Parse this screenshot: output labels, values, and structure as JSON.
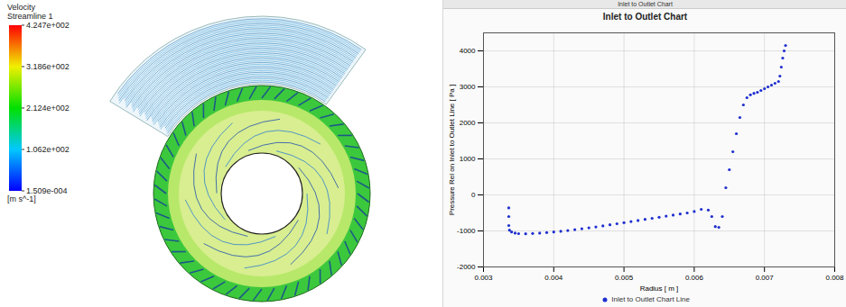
{
  "chart_data": [
    {
      "type": "image",
      "title": "Velocity",
      "subtitle": "Streamline 1",
      "colorbar": {
        "range": [
          0.0001509,
          424.7
        ],
        "ticks": [
          {
            "value": 424.7,
            "label": "4.247e+002"
          },
          {
            "value": 318.6,
            "label": "3.186e+002"
          },
          {
            "value": 212.4,
            "label": "2.124e+002"
          },
          {
            "value": 106.2,
            "label": "1.062e+002"
          },
          {
            "value": 0.0001509,
            "label": "1.509e-004"
          }
        ],
        "label": "[m s^-1]"
      }
    },
    {
      "type": "scatter",
      "header": "Inlet to Outlet Chart",
      "title": "Inlet to Outlet Chart",
      "x_label": "Radius [ m ]",
      "y_label": "Pressure Rel on Inlet to Outlet Line [ Pa ]",
      "xlim": [
        0.003,
        0.008
      ],
      "xticks": [
        0.003,
        0.004,
        0.005,
        0.006,
        0.007,
        0.008
      ],
      "ylim": [
        -2000,
        4500
      ],
      "yticks": [
        -2000,
        -1000,
        0,
        1000,
        2000,
        3000,
        4000
      ],
      "grid": true,
      "legend": "bottom",
      "series": [
        {
          "name": "Inlet to Outlet Chart Line",
          "color": "#1f2fd0",
          "marker": "circle",
          "x": [
            0.00336,
            0.00336,
            0.00336,
            0.00337,
            0.0034,
            0.00345,
            0.0035,
            0.0036,
            0.0037,
            0.0038,
            0.0039,
            0.004,
            0.0041,
            0.0042,
            0.0043,
            0.0044,
            0.0045,
            0.0046,
            0.0047,
            0.0048,
            0.0049,
            0.005,
            0.0051,
            0.0052,
            0.0053,
            0.0054,
            0.0055,
            0.0056,
            0.0057,
            0.0058,
            0.0059,
            0.006,
            0.0061,
            0.0062,
            0.00625,
            0.0063,
            0.00635,
            0.0064,
            0.00645,
            0.0065,
            0.00655,
            0.0066,
            0.00665,
            0.0067,
            0.00675,
            0.0068,
            0.00685,
            0.0069,
            0.00695,
            0.007,
            0.00705,
            0.0071,
            0.00715,
            0.0072,
            0.00722,
            0.00724,
            0.00726,
            0.00728,
            0.0073
          ],
          "values": [
            -360,
            -600,
            -850,
            -980,
            -1030,
            -1060,
            -1075,
            -1080,
            -1070,
            -1060,
            -1045,
            -1030,
            -1010,
            -990,
            -965,
            -940,
            -915,
            -890,
            -860,
            -830,
            -800,
            -770,
            -740,
            -710,
            -680,
            -650,
            -620,
            -590,
            -560,
            -530,
            -500,
            -460,
            -400,
            -420,
            -600,
            -880,
            -900,
            -600,
            200,
            700,
            1200,
            1700,
            2150,
            2500,
            2700,
            2780,
            2820,
            2850,
            2900,
            2950,
            3000,
            3050,
            3100,
            3150,
            3300,
            3550,
            3800,
            4000,
            4150
          ]
        }
      ]
    }
  ]
}
